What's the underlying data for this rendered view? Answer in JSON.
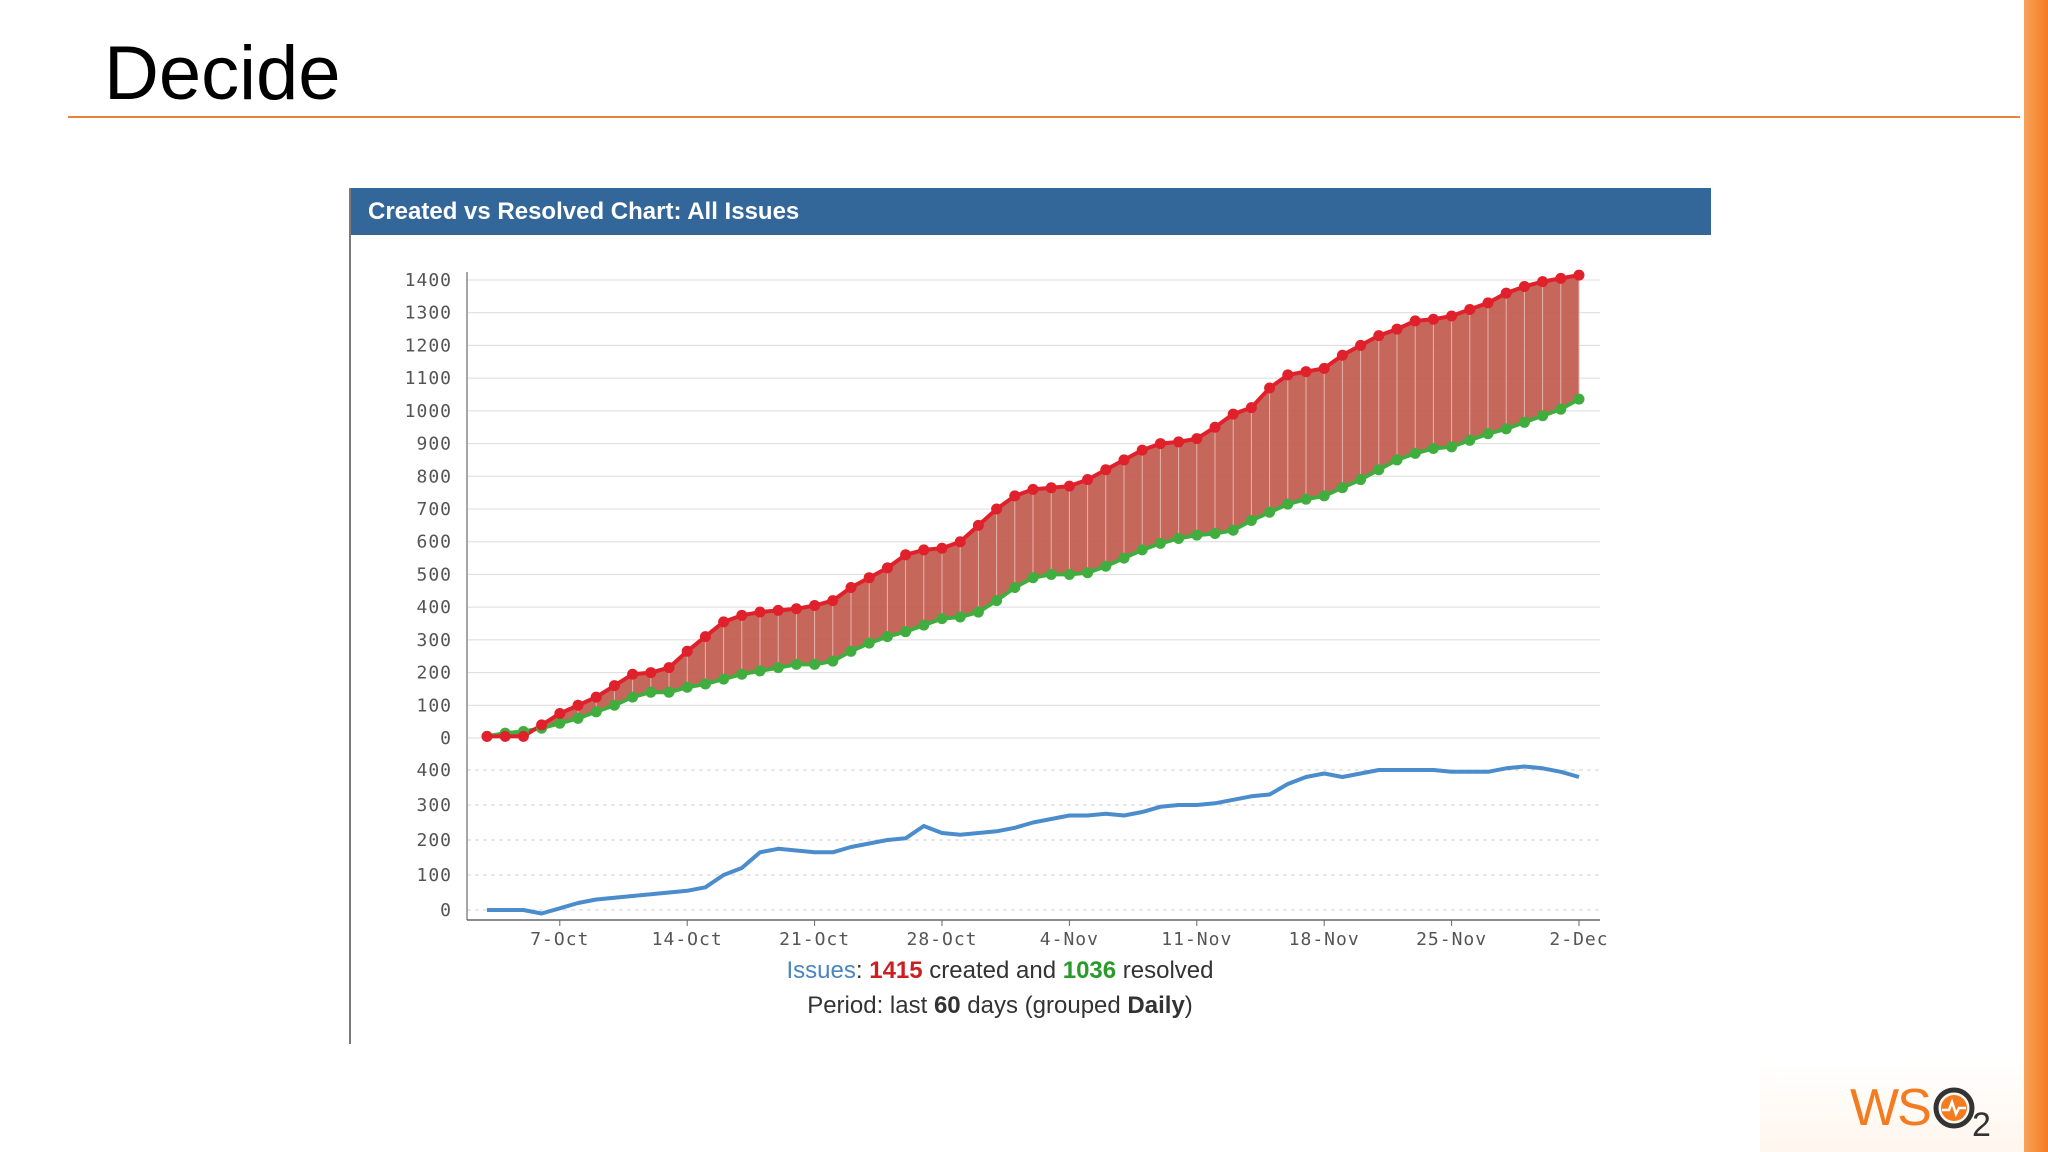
{
  "slide": {
    "title": "Decide"
  },
  "panel": {
    "header": "Created vs Resolved Chart: All Issues"
  },
  "legend": {
    "issues_label": "Issues",
    "colon": ": ",
    "created_count": "1415",
    "created_word": " created and ",
    "resolved_count": "1036",
    "resolved_word": " resolved",
    "period_prefix": "Period: last ",
    "period_days": "60",
    "period_mid": " days (grouped ",
    "period_group": "Daily",
    "period_suffix": ")"
  },
  "logo": {
    "text": "WSO2"
  },
  "colors": {
    "header_bg": "#336699",
    "created": "#e0202a",
    "resolved": "#3fae3f",
    "gap_fill": "#c0574a",
    "trend": "#4a8ccc",
    "accent": "#f47b20"
  },
  "chart_data": [
    {
      "type": "area",
      "title": "",
      "xlabel": "",
      "ylabel": "",
      "x_tick_labels": [
        "7-Oct",
        "14-Oct",
        "21-Oct",
        "28-Oct",
        "4-Nov",
        "11-Nov",
        "18-Nov",
        "25-Nov",
        "2-Dec"
      ],
      "ylim": [
        0,
        1400
      ],
      "y_ticks": [
        0,
        100,
        200,
        300,
        400,
        500,
        600,
        700,
        800,
        900,
        1000,
        1100,
        1200,
        1300,
        1400
      ],
      "grid": true,
      "series": [
        {
          "name": "created",
          "values": [
            5,
            5,
            5,
            40,
            75,
            100,
            125,
            160,
            195,
            200,
            215,
            265,
            310,
            355,
            375,
            385,
            390,
            395,
            405,
            420,
            460,
            490,
            520,
            560,
            575,
            580,
            600,
            650,
            700,
            740,
            760,
            765,
            770,
            790,
            820,
            850,
            880,
            900,
            905,
            915,
            950,
            990,
            1010,
            1070,
            1110,
            1120,
            1130,
            1170,
            1200,
            1230,
            1250,
            1275,
            1280,
            1290,
            1310,
            1330,
            1360,
            1380,
            1395,
            1405,
            1415
          ]
        },
        {
          "name": "resolved",
          "values": [
            5,
            15,
            20,
            30,
            45,
            60,
            80,
            100,
            125,
            140,
            140,
            155,
            165,
            180,
            195,
            205,
            215,
            225,
            225,
            235,
            265,
            290,
            310,
            325,
            345,
            365,
            370,
            385,
            420,
            460,
            490,
            500,
            500,
            505,
            525,
            550,
            575,
            595,
            610,
            620,
            625,
            635,
            665,
            690,
            715,
            730,
            740,
            765,
            790,
            820,
            850,
            870,
            885,
            890,
            910,
            930,
            945,
            965,
            985,
            1005,
            1036
          ]
        }
      ]
    },
    {
      "type": "line",
      "title": "",
      "xlabel": "",
      "ylabel": "",
      "x_tick_labels": [
        "7-Oct",
        "14-Oct",
        "21-Oct",
        "28-Oct",
        "4-Nov",
        "11-Nov",
        "18-Nov",
        "25-Nov",
        "2-Dec"
      ],
      "ylim": [
        0,
        400
      ],
      "y_ticks": [
        0,
        100,
        200,
        300,
        400
      ],
      "grid": true,
      "series": [
        {
          "name": "",
          "values": [
            0,
            0,
            0,
            -10,
            5,
            20,
            30,
            35,
            40,
            45,
            50,
            55,
            65,
            100,
            120,
            165,
            175,
            170,
            165,
            165,
            180,
            190,
            200,
            205,
            240,
            220,
            215,
            220,
            225,
            235,
            250,
            260,
            270,
            270,
            275,
            270,
            280,
            295,
            300,
            300,
            305,
            315,
            325,
            330,
            360,
            380,
            390,
            380,
            390,
            400,
            400,
            400,
            400,
            395,
            395,
            395,
            405,
            410,
            405,
            395,
            380
          ]
        }
      ]
    }
  ]
}
